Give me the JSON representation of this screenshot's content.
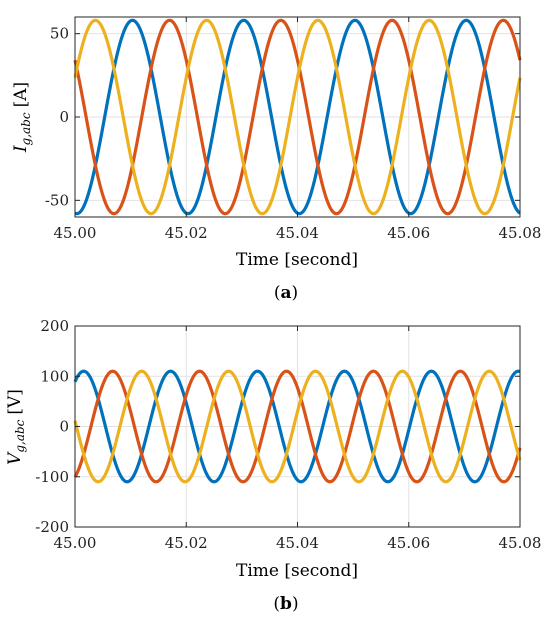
{
  "chart_data": [
    {
      "type": "line",
      "caption_open": "(",
      "caption_letter": "a",
      "caption_close": ")",
      "xlabel": "Time [second]",
      "ylabel_main": "I",
      "ylabel_sub": "g,abc",
      "ylabel_unit": "[A]",
      "xlim": [
        45.0,
        45.08
      ],
      "ylim": [
        -60,
        60
      ],
      "xticks": [
        45.0,
        45.02,
        45.04,
        45.06,
        45.08
      ],
      "xtick_labels": [
        "45.00",
        "45.02",
        "45.04",
        "45.06",
        "45.08"
      ],
      "yticks": [
        -50,
        0,
        50
      ],
      "ytick_labels": [
        "-50",
        "0",
        "50"
      ],
      "grid": true,
      "waveform": {
        "amplitude": 58,
        "frequency_hz": 50
      },
      "series": [
        {
          "color": "#0072BD",
          "phase_deg": 264
        },
        {
          "color": "#D95319",
          "phase_deg": 144
        },
        {
          "color": "#EDB120",
          "phase_deg": 24
        }
      ]
    },
    {
      "type": "line",
      "caption_open": "(",
      "caption_letter": "b",
      "caption_close": ")",
      "xlabel": "Time [second]",
      "ylabel_main": "V",
      "ylabel_sub": "g,abc",
      "ylabel_unit": "[V]",
      "xlim": [
        45.0,
        45.08
      ],
      "ylim": [
        -200,
        200
      ],
      "xticks": [
        45.0,
        45.02,
        45.04,
        45.06,
        45.08
      ],
      "xtick_labels": [
        "45.00",
        "45.02",
        "45.04",
        "45.06",
        "45.08"
      ],
      "yticks": [
        -200,
        -100,
        0,
        100,
        200
      ],
      "ytick_labels": [
        "-200",
        "-100",
        "0",
        "100",
        "200"
      ],
      "grid": true,
      "waveform": {
        "amplitude": 110,
        "frequency_hz": 64
      },
      "series": [
        {
          "color": "#0072BD",
          "phase_deg": 54
        },
        {
          "color": "#D95319",
          "phase_deg": 294
        },
        {
          "color": "#EDB120",
          "phase_deg": 174
        }
      ]
    }
  ]
}
